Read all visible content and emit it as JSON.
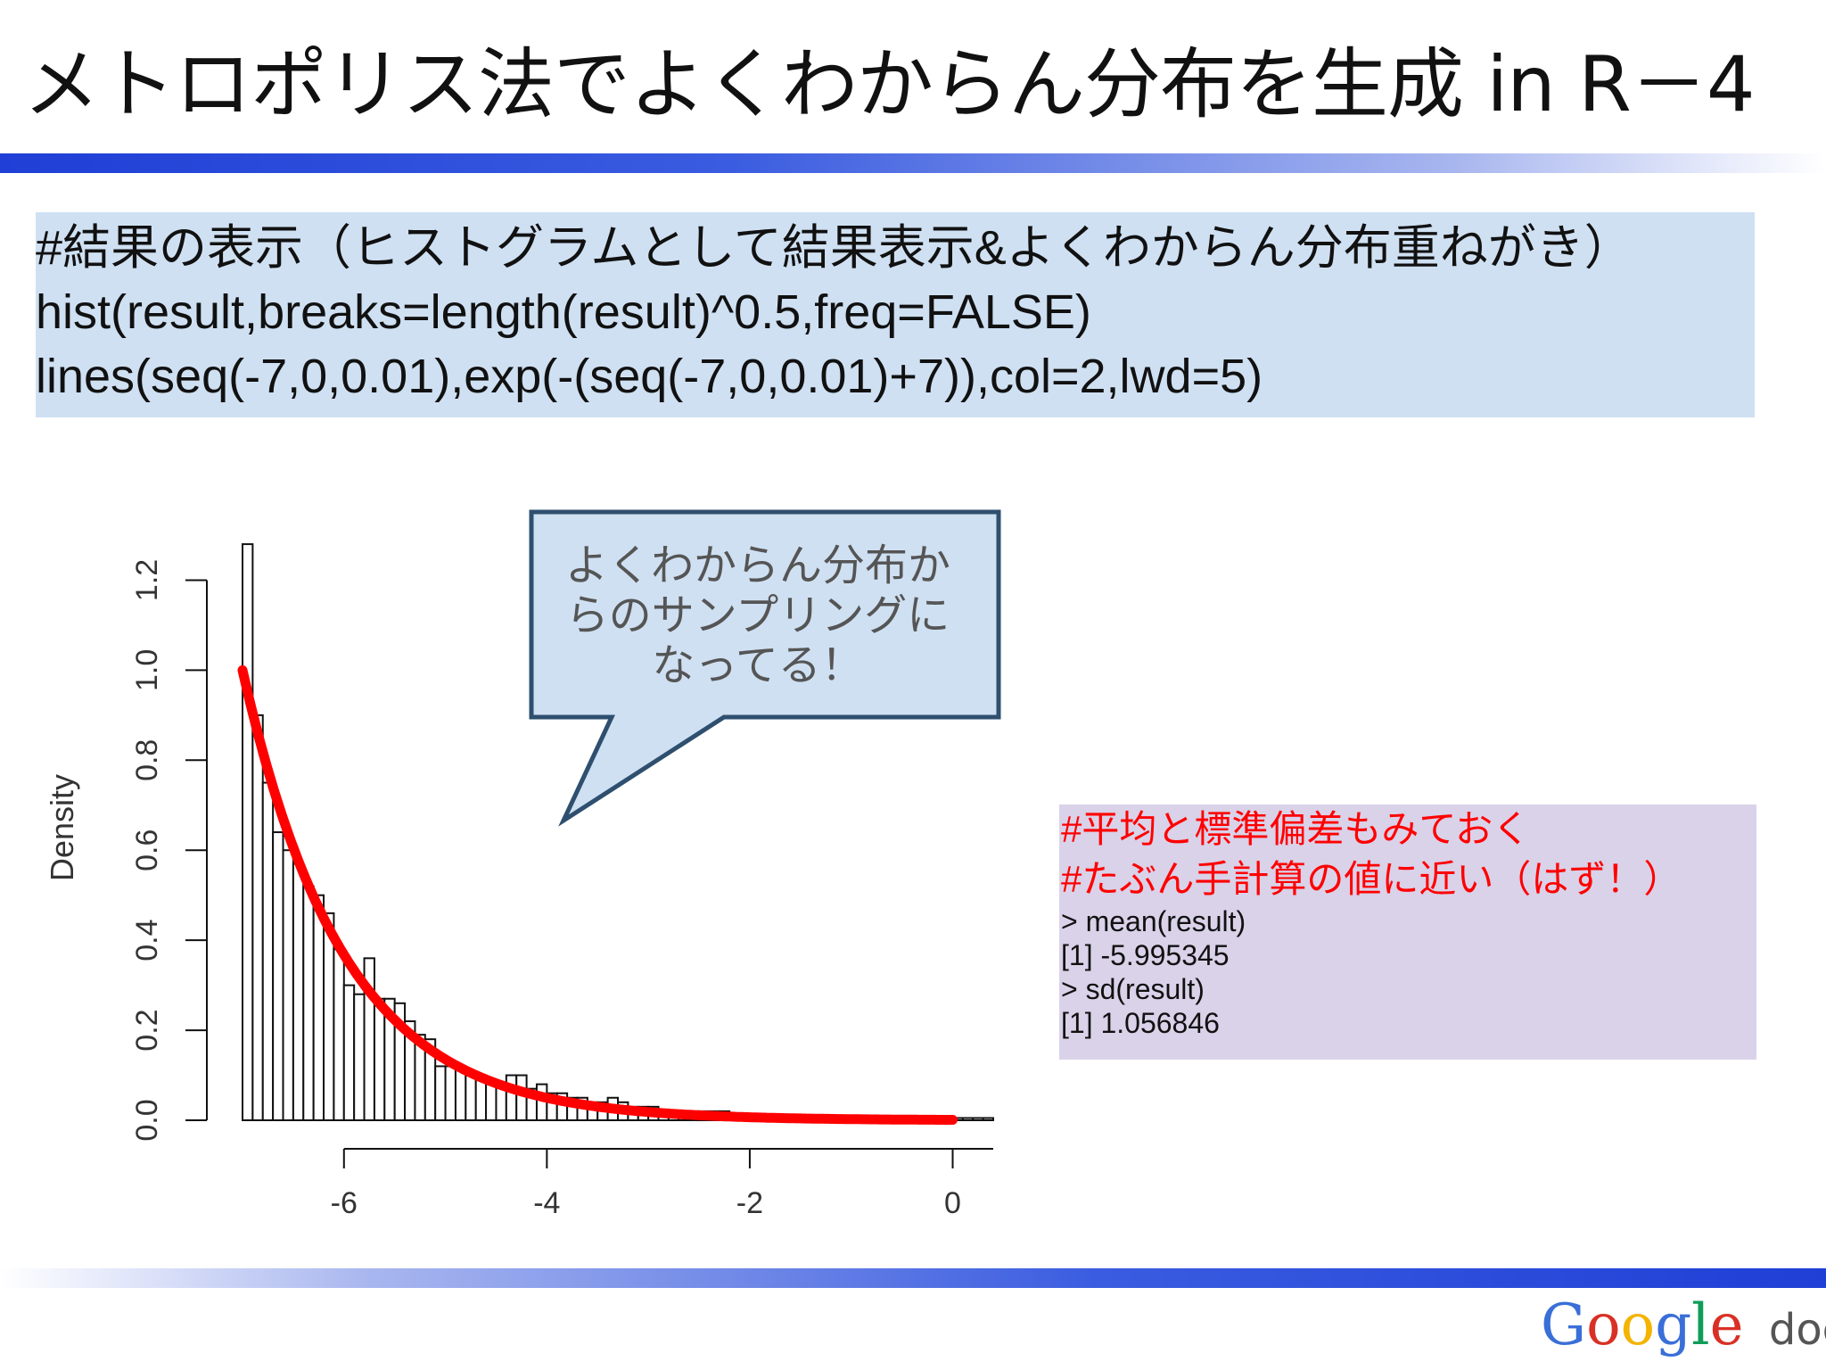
{
  "slide": {
    "title": "メトロポリス法でよくわからん分布を生成 in R－4"
  },
  "code": {
    "lines": [
      "#結果の表示（ヒストグラムとして結果表示&よくわからん分布重ねがき）",
      "hist(result,breaks=length(result)^0.5,freq=FALSE)",
      "lines(seq(-7,0,0.01),exp(-(seq(-7,0,0.01)+7)),col=2,lwd=5)"
    ]
  },
  "callout": {
    "lines": [
      "よくわからん分布か",
      "らのサンプリングに",
      "なってる！"
    ]
  },
  "stats": {
    "comments": [
      "#平均と標準偏差もみておく",
      "#たぶん手計算の値に近い（はず！）"
    ],
    "output": [
      "> mean(result)",
      "[1] -5.995345",
      "> sd(result)",
      "[1] 1.056846"
    ]
  },
  "footer": {
    "logo_google": "Google",
    "logo_docs": "docs"
  },
  "colors": {
    "title_bar": "#1f3fd6",
    "code_bg": "#cfe0f2",
    "stats_bg": "#d9d2e9",
    "comment_red": "#ff0000",
    "curve_red": "#ff0000",
    "callout_fill": "#cfe0f2",
    "callout_border": "#2f4f6f"
  },
  "chart_data": {
    "type": "bar",
    "title": "",
    "xlabel": "",
    "ylabel": "Density",
    "xlim": [
      -7,
      0.4
    ],
    "ylim": [
      0,
      1.3
    ],
    "x_ticks": [
      -6,
      -4,
      -2,
      0
    ],
    "y_ticks": [
      0.0,
      0.2,
      0.4,
      0.6,
      0.8,
      1.0,
      1.2
    ],
    "x_tick_labels": [
      "-6",
      "-4",
      "-2",
      "0"
    ],
    "y_tick_labels": [
      "0.0",
      "0.2",
      "0.4",
      "0.6",
      "0.8",
      "1.0",
      "1.2"
    ],
    "bin_width": 0.1,
    "bin_starts": [
      -7.0,
      -6.9,
      -6.8,
      -6.7,
      -6.6,
      -6.5,
      -6.4,
      -6.3,
      -6.2,
      -6.1,
      -6.0,
      -5.9,
      -5.8,
      -5.7,
      -5.6,
      -5.5,
      -5.4,
      -5.3,
      -5.2,
      -5.1,
      -5.0,
      -4.9,
      -4.8,
      -4.7,
      -4.6,
      -4.5,
      -4.4,
      -4.3,
      -4.2,
      -4.1,
      -4.0,
      -3.9,
      -3.8,
      -3.7,
      -3.6,
      -3.5,
      -3.4,
      -3.3,
      -3.2,
      -3.1,
      -3.0,
      -2.9,
      -2.8,
      -2.7,
      -2.6,
      -2.5,
      -2.4,
      -2.3,
      -2.2,
      -2.1,
      -2.0,
      -1.9,
      -1.8,
      -1.7,
      -1.6,
      -1.5,
      -1.4,
      -1.3,
      -1.2,
      -1.1,
      -1.0,
      -0.9,
      -0.8,
      -0.7,
      -0.6,
      -0.5,
      -0.4,
      -0.3,
      -0.2,
      -0.1,
      0.0,
      0.1,
      0.2,
      0.3
    ],
    "values": [
      1.28,
      0.9,
      0.75,
      0.64,
      0.6,
      0.57,
      0.52,
      0.5,
      0.46,
      0.38,
      0.3,
      0.28,
      0.36,
      0.27,
      0.27,
      0.26,
      0.22,
      0.19,
      0.18,
      0.12,
      0.12,
      0.12,
      0.1,
      0.1,
      0.09,
      0.08,
      0.1,
      0.1,
      0.07,
      0.08,
      0.06,
      0.06,
      0.05,
      0.05,
      0.04,
      0.04,
      0.05,
      0.04,
      0.03,
      0.03,
      0.03,
      0.02,
      0.02,
      0.02,
      0.02,
      0.02,
      0.02,
      0.02,
      0.01,
      0.01,
      0.01,
      0.01,
      0.01,
      0.01,
      0.01,
      0.01,
      0.01,
      0.01,
      0.01,
      0.01,
      0.005,
      0.005,
      0.005,
      0.005,
      0.005,
      0.005,
      0.005,
      0.005,
      0.005,
      0.005,
      0.005,
      0.005,
      0.005,
      0.005
    ],
    "overlay_curve": {
      "function": "exp(-(x+7))",
      "x_range": [
        -7,
        0
      ],
      "color": "#ff0000"
    },
    "grid": false
  }
}
